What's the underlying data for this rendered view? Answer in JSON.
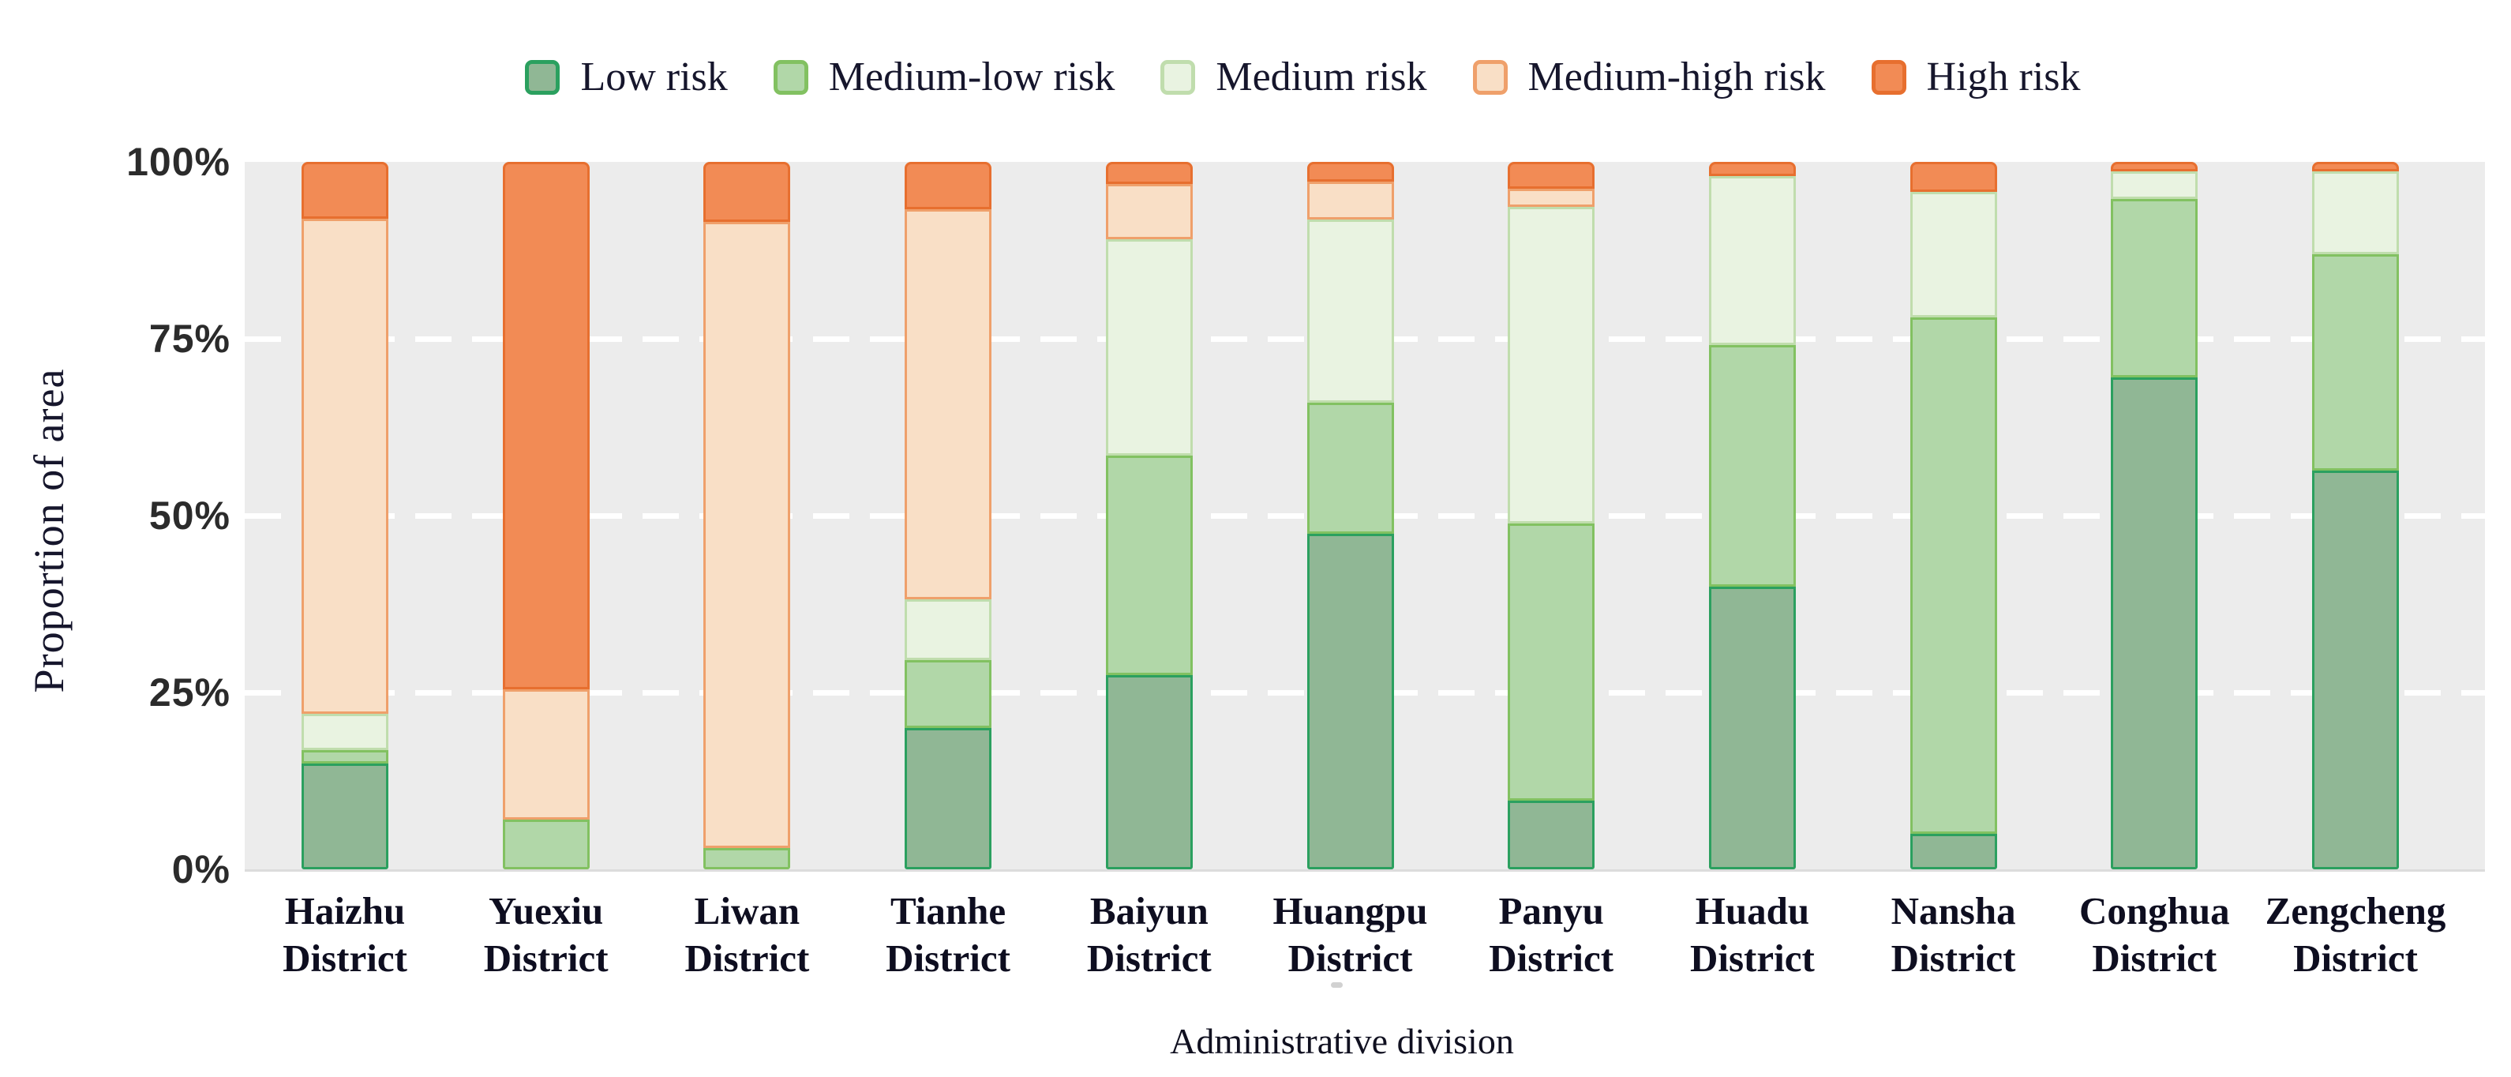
{
  "legend": {
    "items": [
      {
        "label": "Low risk",
        "fill": "#90b795",
        "border": "#2ba05f"
      },
      {
        "label": "Medium-low risk",
        "fill": "#b1d7a8",
        "border": "#82c161"
      },
      {
        "label": "Medium risk",
        "fill": "#e9f3e1",
        "border": "#c0ddad"
      },
      {
        "label": "Medium-high risk",
        "fill": "#f9dfc6",
        "border": "#efa06b"
      },
      {
        "label": "High risk",
        "fill": "#f28b55",
        "border": "#e76f2f"
      }
    ]
  },
  "y_axis": {
    "title": "Proportion of area",
    "ticks": [
      "100%",
      "75%",
      "50%",
      "25%",
      "0%"
    ]
  },
  "x_axis": {
    "title": "Administrative division"
  },
  "chart_data": {
    "type": "bar",
    "stacked": true,
    "title": "",
    "xlabel": "Administrative division",
    "ylabel": "Proportion of area",
    "ylim": [
      0,
      100
    ],
    "y_tick_percents": [
      0,
      25,
      50,
      75,
      100
    ],
    "grid": {
      "horizontal_percents": [
        25,
        50,
        75
      ],
      "style": "white-dashed"
    },
    "legend_position": "top",
    "categories": [
      "Haizhu",
      "Yuexiu",
      "Liwan",
      "Tianhe",
      "Baiyun",
      "Huangpu",
      "Panyu",
      "Huadu",
      "Nansha",
      "Conghua",
      "Zengcheng"
    ],
    "category_suffix": "District",
    "series": [
      {
        "name": "Low risk",
        "values": [
          15.0,
          0.0,
          0.0,
          20.0,
          27.5,
          47.4,
          9.7,
          40.0,
          5.0,
          69.5,
          56.4
        ]
      },
      {
        "name": "Medium-low risk",
        "values": [
          1.8,
          7.0,
          3.0,
          9.6,
          31.0,
          18.6,
          39.2,
          34.1,
          73.0,
          25.3,
          30.5
        ]
      },
      {
        "name": "Medium risk",
        "values": [
          5.2,
          0.0,
          0.0,
          8.6,
          30.6,
          25.9,
          44.7,
          23.9,
          17.8,
          3.9,
          11.8
        ]
      },
      {
        "name": "Medium-high risk",
        "values": [
          70.0,
          18.5,
          88.5,
          55.1,
          7.8,
          5.3,
          2.6,
          0.0,
          0.0,
          0.0,
          0.0
        ]
      },
      {
        "name": "High risk",
        "values": [
          8.0,
          74.5,
          8.5,
          6.7,
          3.1,
          2.8,
          3.8,
          2.0,
          4.2,
          1.3,
          1.3
        ]
      }
    ]
  },
  "colors": {
    "plot_background": "#ececec",
    "gridline": "#ffffff",
    "tick_text": "#2b2b2b",
    "label_text": "#16162c"
  }
}
